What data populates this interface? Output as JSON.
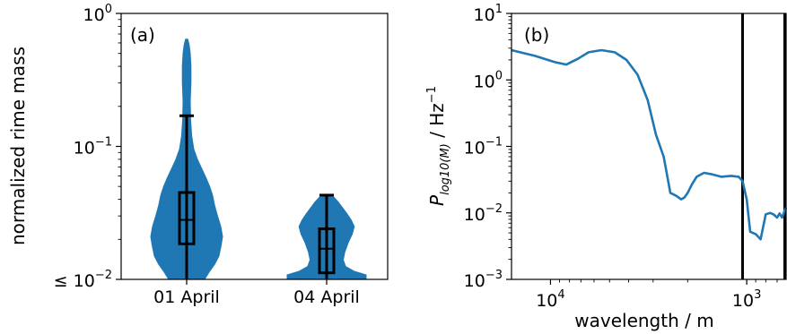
{
  "chart_data": [
    {
      "type": "violin",
      "panel_label": "(a)",
      "ylabel": "normalized rime mass",
      "yscale": "log",
      "ylim": [
        0.01,
        1
      ],
      "y_ticks": [
        {
          "value": 1,
          "base": "10",
          "exp": "0",
          "prefix": ""
        },
        {
          "value": 0.1,
          "base": "10",
          "exp": "−1",
          "prefix": ""
        },
        {
          "value": 0.01,
          "base": "10",
          "exp": "−2",
          "prefix": "≤ "
        }
      ],
      "categories": [
        "01 April",
        "04 April"
      ],
      "color": "#1f77b4",
      "violins": [
        {
          "category": "01 April",
          "min": 0.01,
          "max": 0.17,
          "q1": 0.0185,
          "median": 0.028,
          "q3": 0.045,
          "density": [
            [
              0.01,
              0.5
            ],
            [
              0.0115,
              0.64
            ],
            [
              0.013,
              0.78
            ],
            [
              0.015,
              0.9
            ],
            [
              0.018,
              0.96
            ],
            [
              0.021,
              1.0
            ],
            [
              0.025,
              0.95
            ],
            [
              0.03,
              0.86
            ],
            [
              0.036,
              0.78
            ],
            [
              0.043,
              0.72
            ],
            [
              0.05,
              0.64
            ],
            [
              0.058,
              0.54
            ],
            [
              0.068,
              0.42
            ],
            [
              0.08,
              0.3
            ],
            [
              0.095,
              0.2
            ],
            [
              0.12,
              0.14
            ],
            [
              0.16,
              0.11
            ],
            [
              0.22,
              0.1
            ],
            [
              0.3,
              0.12
            ],
            [
              0.4,
              0.12
            ],
            [
              0.5,
              0.1
            ],
            [
              0.58,
              0.07
            ],
            [
              0.64,
              0.03
            ]
          ]
        },
        {
          "category": "04 April",
          "min": 0.01,
          "max": 0.043,
          "q1": 0.0112,
          "median": 0.017,
          "q3": 0.024,
          "density": [
            [
              0.01,
              1.0
            ],
            [
              0.0108,
              1.0
            ],
            [
              0.0115,
              0.7
            ],
            [
              0.0125,
              0.48
            ],
            [
              0.014,
              0.42
            ],
            [
              0.016,
              0.46
            ],
            [
              0.019,
              0.55
            ],
            [
              0.022,
              0.65
            ],
            [
              0.025,
              0.7
            ],
            [
              0.028,
              0.62
            ],
            [
              0.031,
              0.52
            ],
            [
              0.034,
              0.42
            ],
            [
              0.038,
              0.3
            ],
            [
              0.041,
              0.2
            ],
            [
              0.043,
              0.12
            ]
          ]
        }
      ]
    },
    {
      "type": "line",
      "panel_label": "(b)",
      "xlabel": "wavelength / m",
      "ylabel_main": "P",
      "ylabel_sub": "log10(M)",
      "ylabel_unit": " / Hz",
      "ylabel_unit_exp": "−1",
      "xscale": "log",
      "yscale": "log",
      "x_inverted": true,
      "xlim": [
        15800,
        630
      ],
      "ylim": [
        0.001,
        10
      ],
      "x_ticks": [
        {
          "value": 10000,
          "base": "10",
          "exp": "4"
        },
        {
          "value": 1000,
          "base": "10",
          "exp": "3"
        }
      ],
      "y_ticks": [
        {
          "value": 10,
          "base": "10",
          "exp": "1"
        },
        {
          "value": 1,
          "base": "10",
          "exp": "0"
        },
        {
          "value": 0.1,
          "base": "10",
          "exp": "−1"
        },
        {
          "value": 0.01,
          "base": "10",
          "exp": "−2"
        },
        {
          "value": 0.001,
          "base": "10",
          "exp": "−3"
        }
      ],
      "vlines": [
        1050,
        630
      ],
      "color": "#1f77b4",
      "series": [
        {
          "x": [
            15800,
            12000,
            9500,
            8300,
            7200,
            6400,
            5500,
            4700,
            4100,
            3600,
            3200,
            2900,
            2650,
            2450,
            2280,
            2160,
            2080,
            2000,
            1900,
            1800,
            1650,
            1500,
            1350,
            1200,
            1100,
            1050,
            1000,
            960,
            900,
            850,
            800,
            760,
            730,
            700,
            680,
            660,
            640,
            630
          ],
          "y": [
            2.8,
            2.3,
            1.85,
            1.7,
            2.1,
            2.6,
            2.8,
            2.6,
            2.0,
            1.2,
            0.5,
            0.15,
            0.07,
            0.02,
            0.018,
            0.016,
            0.017,
            0.02,
            0.027,
            0.035,
            0.04,
            0.038,
            0.035,
            0.036,
            0.035,
            0.03,
            0.016,
            0.0052,
            0.0048,
            0.004,
            0.0095,
            0.01,
            0.0095,
            0.0085,
            0.0098,
            0.0085,
            0.011,
            0.012
          ]
        }
      ]
    }
  ]
}
